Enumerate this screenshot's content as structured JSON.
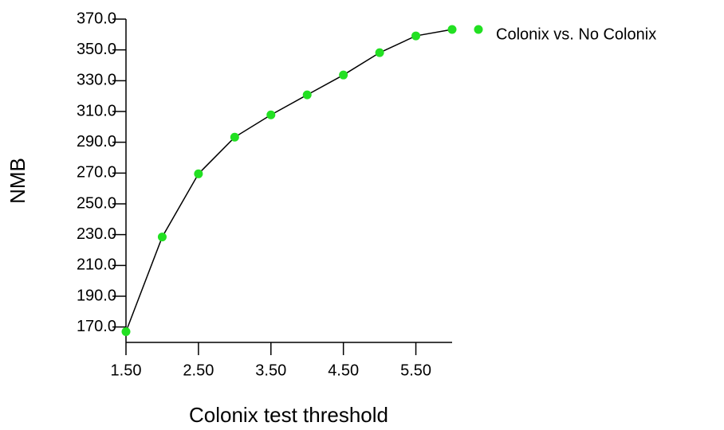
{
  "chart_data": {
    "type": "line",
    "x_label": "Colonix test threshold",
    "y_label": "NMB",
    "x": [
      1.5,
      2.0,
      2.5,
      3.0,
      3.5,
      4.0,
      4.5,
      5.0,
      5.5,
      6.0
    ],
    "series": [
      {
        "name": "Colonix vs. No Colonix",
        "color": "#22e022",
        "line_color": "#000000",
        "values": [
          167,
          228.5,
          269.5,
          293.3,
          307.8,
          320.8,
          333.7,
          348.2,
          359.1,
          363.3
        ]
      }
    ],
    "xlim": [
      1.5,
      6.0
    ],
    "xticks": [
      {
        "value": 1.5,
        "label": "1.50"
      },
      {
        "value": 2.5,
        "label": "2.50"
      },
      {
        "value": 3.5,
        "label": "3.50"
      },
      {
        "value": 4.5,
        "label": "4.50"
      },
      {
        "value": 5.5,
        "label": "5.50"
      }
    ],
    "ylim": [
      160,
      370
    ],
    "yticks": [
      {
        "value": 170,
        "label": "170.0"
      },
      {
        "value": 190,
        "label": "190.0"
      },
      {
        "value": 210,
        "label": "210.0"
      },
      {
        "value": 230,
        "label": "230.0"
      },
      {
        "value": 250,
        "label": "250.0"
      },
      {
        "value": 270,
        "label": "270.0"
      },
      {
        "value": 290,
        "label": "290.0"
      },
      {
        "value": 310,
        "label": "310.0"
      },
      {
        "value": 330,
        "label": "330.0"
      },
      {
        "value": 350,
        "label": "350.0"
      },
      {
        "value": 370,
        "label": "370.0"
      }
    ],
    "grid": false,
    "legend": "right"
  }
}
